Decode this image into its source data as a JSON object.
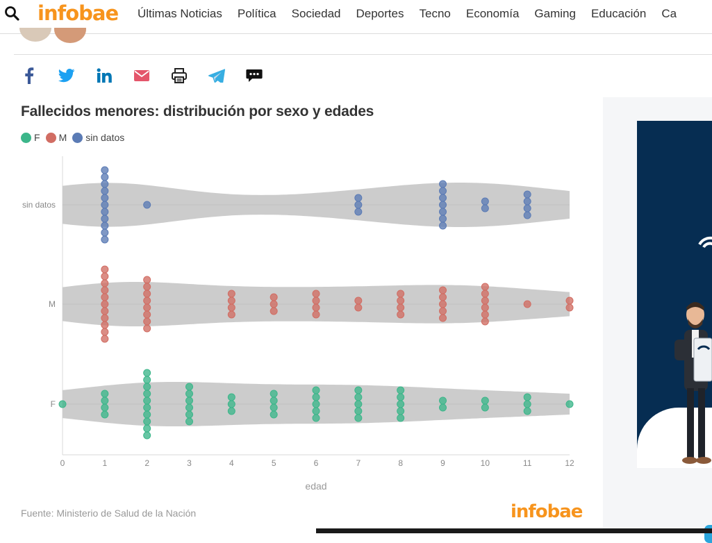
{
  "header": {
    "logo": "infobae",
    "nav": [
      "Últimas Noticias",
      "Política",
      "Sociedad",
      "Deportes",
      "Tecno",
      "Economía",
      "Gaming",
      "Educación",
      "Ca"
    ]
  },
  "share_icons": [
    "facebook-icon",
    "twitter-icon",
    "linkedin-icon",
    "email-icon",
    "print-icon",
    "telegram-icon",
    "comments-icon"
  ],
  "colors": {
    "F": "#3cb68a",
    "M": "#d16d63",
    "sin datos": "#5b7bb5",
    "violin": "#c9c9c9",
    "brand": "#f7941d",
    "ad_bg": "#062d52"
  },
  "chart_data": {
    "type": "scatter",
    "subtype": "beeswarm-violin",
    "title": "Fallecidos menores: distribución por sexo y edades",
    "xlabel": "edad",
    "ylabel": "",
    "xlim": [
      0,
      12
    ],
    "x_ticks": [
      0,
      1,
      2,
      3,
      4,
      5,
      6,
      7,
      8,
      9,
      10,
      11,
      12
    ],
    "categories": [
      "sin datos",
      "M",
      "F"
    ],
    "legend": [
      "F",
      "M",
      "sin datos"
    ],
    "legend_position": "top-left",
    "grid": false,
    "series": [
      {
        "name": "sin datos",
        "counts": {
          "1": 11,
          "2": 1,
          "7": 3,
          "9": 7,
          "10": 2,
          "11": 4
        }
      },
      {
        "name": "M",
        "counts": {
          "1": 11,
          "2": 8,
          "4": 4,
          "5": 3,
          "6": 4,
          "7": 2,
          "8": 4,
          "9": 5,
          "10": 6,
          "11": 1,
          "12": 2
        }
      },
      {
        "name": "F",
        "counts": {
          "0": 1,
          "1": 4,
          "2": 10,
          "3": 6,
          "4": 3,
          "5": 4,
          "6": 5,
          "7": 5,
          "8": 5,
          "9": 2,
          "10": 2,
          "11": 3,
          "12": 1
        }
      }
    ],
    "source": "Fuente: Ministerio de Salud de la Nación",
    "brand": "infobae"
  }
}
